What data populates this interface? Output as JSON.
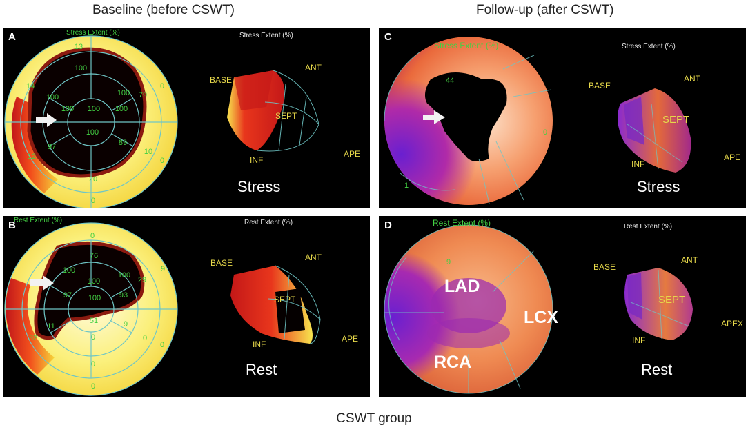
{
  "headers": {
    "baseline": "Baseline (before CSWT)",
    "followup": "Follow-up (after CSWT)"
  },
  "footer": "CSWT group",
  "panels": {
    "A": {
      "letter": "A",
      "map_title": "Stress Extent (%)",
      "view_title": "Stress Extent (%)",
      "condition": "Stress",
      "values": [
        "13",
        "14",
        "79",
        "0",
        "100",
        "100",
        "100",
        "100",
        "100",
        "100",
        "100",
        "97",
        "89",
        "10",
        "12",
        "0",
        "20",
        "0"
      ]
    },
    "B": {
      "letter": "B",
      "map_title": "Rest Extent (%)",
      "view_title": "Rest Extent (%)",
      "condition": "Rest",
      "values": [
        "0",
        "76",
        "100",
        "100",
        "29",
        "9",
        "100",
        "97",
        "100",
        "93",
        "32",
        "11",
        "51",
        "9",
        "0",
        "0",
        "0",
        "0",
        "0"
      ]
    },
    "C": {
      "letter": "C",
      "map_title": "Stress Extent (%)",
      "view_title": "Stress Extent (%)",
      "condition": "Stress",
      "values": [
        "44",
        "0",
        "1"
      ]
    },
    "D": {
      "letter": "D",
      "map_title": "Rest Extent (%)",
      "view_title": "Rest Extent (%)",
      "condition": "Rest",
      "values": [
        "9"
      ],
      "territories": [
        "LAD",
        "LCX",
        "RCA"
      ]
    }
  },
  "orientation": {
    "base": "BASE",
    "ant": "ANT",
    "sept": "SEPT",
    "inf": "INF",
    "ape": "APE",
    "apex": "APEX"
  },
  "colors": {
    "grid": "#6fc6c6",
    "label_green": "#43d043",
    "label_yellow": "#e6d84a"
  }
}
